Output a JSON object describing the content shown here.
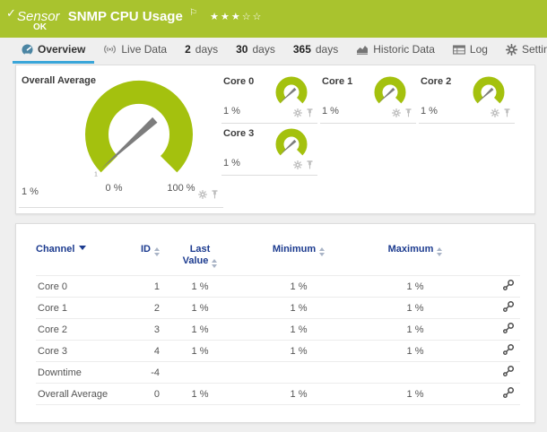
{
  "header": {
    "type_label": "Sensor",
    "title": "SNMP CPU Usage",
    "status": "OK",
    "stars_filled": 3,
    "stars_total": 5
  },
  "tabs": [
    {
      "label": "Overview",
      "icon": "gauge-icon",
      "active": true
    },
    {
      "label": "Live Data",
      "icon": "live-icon"
    },
    {
      "num": "2",
      "label": "days"
    },
    {
      "num": "30",
      "label": "days"
    },
    {
      "num": "365",
      "label": "days"
    },
    {
      "label": "Historic Data",
      "icon": "chart-icon"
    },
    {
      "label": "Log",
      "icon": "log-icon"
    },
    {
      "label": "Settings",
      "icon": "gear-icon"
    }
  ],
  "gauges": {
    "overall": {
      "name": "Overall Average",
      "value": 1,
      "value_label": "1 %",
      "min_label": "0 %",
      "max_label": "100 %",
      "needle_tick": "1"
    },
    "cores": [
      {
        "name": "Core 0",
        "value": 1,
        "value_label": "1 %"
      },
      {
        "name": "Core 1",
        "value": 1,
        "value_label": "1 %"
      },
      {
        "name": "Core 2",
        "value": 1,
        "value_label": "1 %"
      },
      {
        "name": "Core 3",
        "value": 1,
        "value_label": "1 %"
      }
    ]
  },
  "table": {
    "columns": [
      {
        "key": "channel",
        "label": "Channel",
        "sorted": true
      },
      {
        "key": "id",
        "label": "ID"
      },
      {
        "key": "last",
        "label": "Last Value"
      },
      {
        "key": "min",
        "label": "Minimum"
      },
      {
        "key": "max",
        "label": "Maximum"
      }
    ],
    "rows": [
      {
        "channel": "Core 0",
        "id": "1",
        "last": "1 %",
        "min": "1 %",
        "max": "1 %"
      },
      {
        "channel": "Core 1",
        "id": "2",
        "last": "1 %",
        "min": "1 %",
        "max": "1 %"
      },
      {
        "channel": "Core 2",
        "id": "3",
        "last": "1 %",
        "min": "1 %",
        "max": "1 %"
      },
      {
        "channel": "Core 3",
        "id": "4",
        "last": "1 %",
        "min": "1 %",
        "max": "1 %"
      },
      {
        "channel": "Downtime",
        "id": "-4",
        "last": "",
        "min": "",
        "max": ""
      },
      {
        "channel": "Overall Average",
        "id": "0",
        "last": "1 %",
        "min": "1 %",
        "max": "1 %"
      }
    ]
  },
  "colors": {
    "header_green": "#a9c32e",
    "gauge_green": "#a4c10e",
    "tab_accent_blue": "#3aa6d9",
    "table_header_blue": "#1c3b8f",
    "needle_gray": "#7d7d7d"
  }
}
